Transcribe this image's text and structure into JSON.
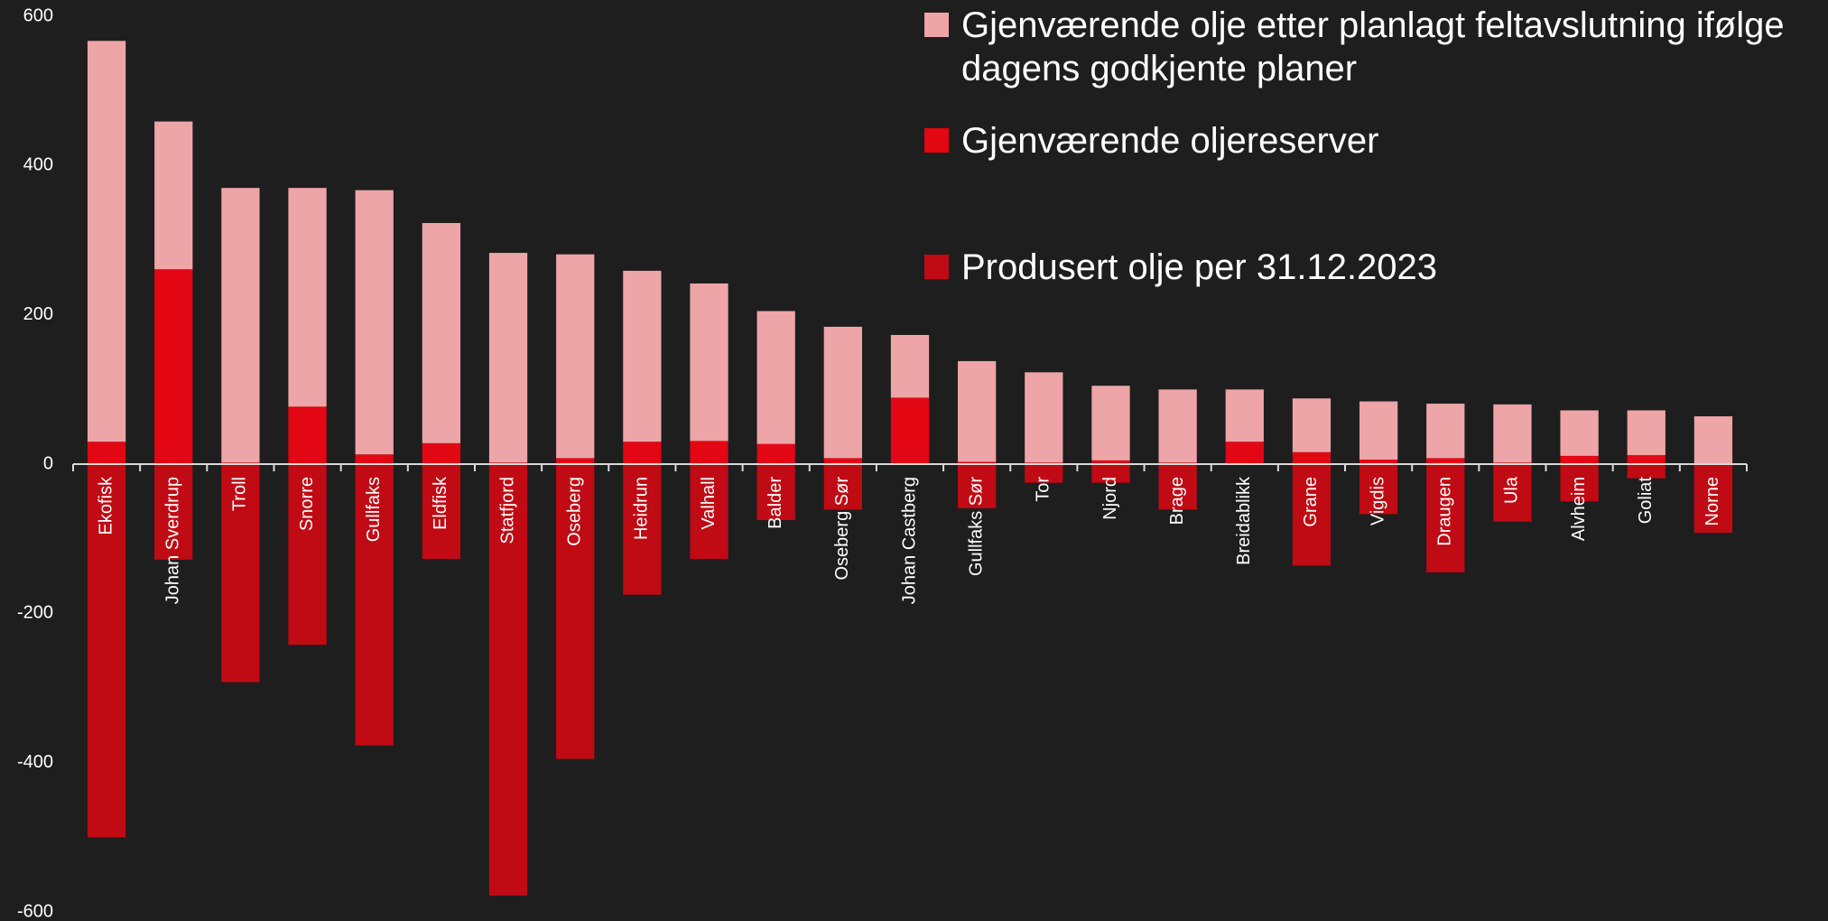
{
  "chart_data": {
    "type": "bar",
    "stacked": true,
    "categories": [
      "Ekofisk",
      "Johan Sverdrup",
      "Troll",
      "Snorre",
      "Gullfaks",
      "Eldfisk",
      "Statfjord",
      "Oseberg",
      "Heidrun",
      "Valhall",
      "Balder",
      "Oseberg Sør",
      "Johan Castberg",
      "Gullfaks Sør",
      "Tor",
      "Njord",
      "Brage",
      "Breidablikk",
      "Grane",
      "Vigdis",
      "Draugen",
      "Ula",
      "Alvheim",
      "Goliat",
      "Norne"
    ],
    "series": [
      {
        "name": "Gjenværende olje etter planlagt feltavslutning ifølge dagens godkjente planer",
        "color": "#eda5a7",
        "values": [
          537,
          198,
          368,
          293,
          354,
          295,
          281,
          273,
          229,
          211,
          178,
          176,
          84,
          135,
          121,
          100,
          98,
          70,
          72,
          78,
          73,
          78,
          61,
          60,
          63
        ]
      },
      {
        "name": "Gjenværende oljereserver",
        "color": "#e30613",
        "values": [
          30,
          261,
          2,
          77,
          13,
          28,
          2,
          8,
          30,
          31,
          27,
          8,
          89,
          3,
          2,
          5,
          2,
          30,
          16,
          6,
          8,
          2,
          11,
          12,
          1
        ]
      },
      {
        "name": "Produsert olje per 31.12.2023",
        "color": "#c00a14",
        "values": [
          -500,
          -128,
          -292,
          -242,
          -377,
          -127,
          -578,
          -395,
          -175,
          -127,
          -75,
          -61,
          0,
          -59,
          -25,
          -25,
          -61,
          0,
          -136,
          -67,
          -145,
          -77,
          -50,
          -19,
          -92
        ]
      }
    ],
    "ylim": [
      -600,
      600
    ],
    "yticks": [
      -600,
      -400,
      -200,
      0,
      200,
      400,
      600
    ],
    "grid": false,
    "legend": "top-right"
  }
}
